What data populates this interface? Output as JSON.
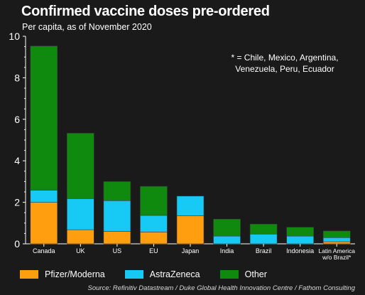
{
  "chart_data": {
    "type": "bar",
    "stacked": true,
    "title": "Confirmed vaccine doses pre-ordered",
    "subtitle": "Per capita, as of November 2020",
    "note": [
      "* = Chile, Mexico, Argentina,",
      "Venezuela, Peru, Ecuador"
    ],
    "categories": [
      "Canada",
      "UK",
      "US",
      "EU",
      "Japan",
      "India",
      "Brazil",
      "Indonesia",
      [
        "Latin America",
        "w/o Brazil*"
      ]
    ],
    "series": [
      {
        "name": "Pfizer/Moderna",
        "color": "#ff9f0f",
        "values": [
          2.0,
          0.68,
          0.6,
          0.57,
          1.35,
          0.0,
          0.0,
          0.0,
          0.1
        ]
      },
      {
        "name": "AstraZeneca",
        "color": "#17c9f5",
        "values": [
          0.58,
          1.5,
          1.48,
          0.8,
          0.95,
          0.37,
          0.47,
          0.37,
          0.2
        ]
      },
      {
        "name": "Other",
        "color": "#0f8a0f",
        "values": [
          6.95,
          3.15,
          0.92,
          1.4,
          0.0,
          0.82,
          0.48,
          0.43,
          0.32
        ]
      }
    ],
    "yticks": [
      0,
      2,
      4,
      6,
      8,
      10
    ],
    "ylim": [
      0,
      10
    ],
    "grid": false,
    "legend_position": "bottom"
  },
  "source": "Source: Refinitiv Datastream / Duke Global Health Innovation Centre / Fathom Consulting"
}
